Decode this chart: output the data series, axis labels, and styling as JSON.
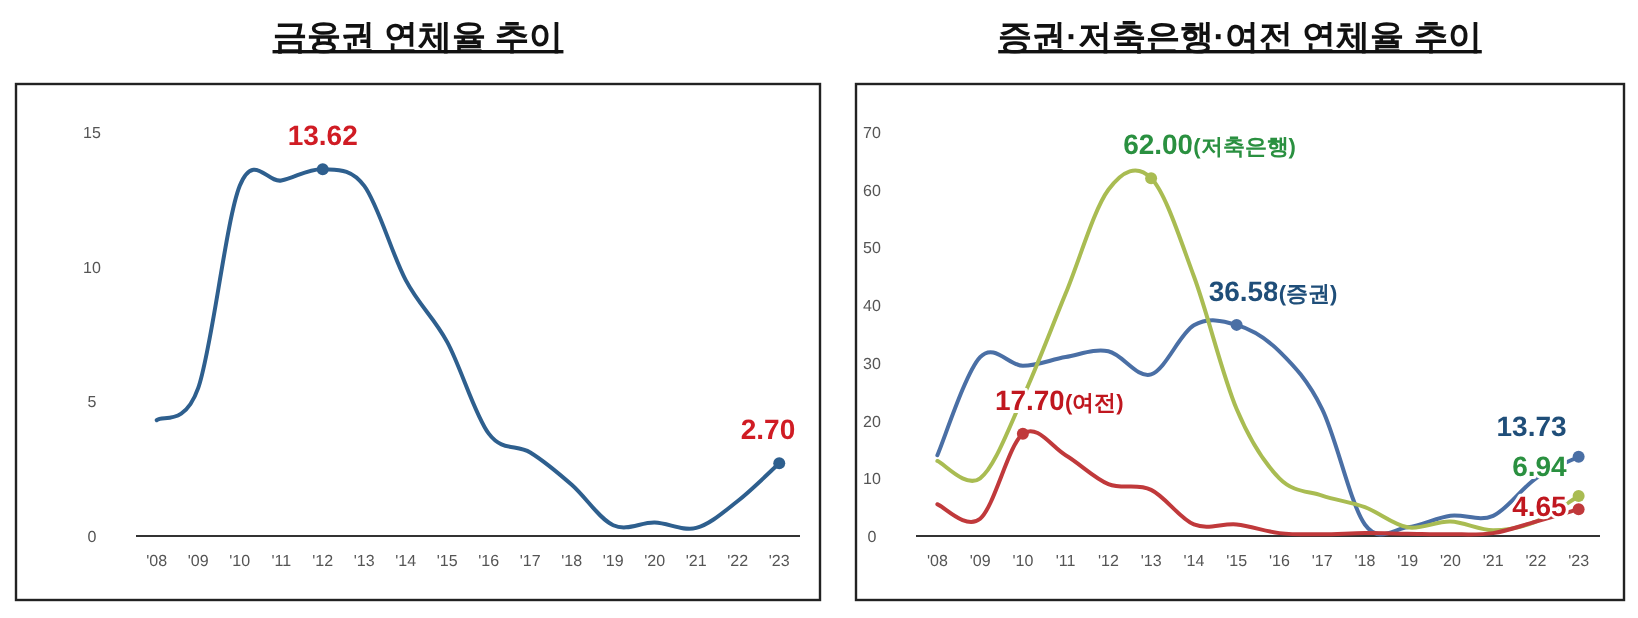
{
  "chart_data": [
    {
      "type": "line",
      "title": "금융권 연체율 추이",
      "categories": [
        "'08",
        "'09",
        "'10",
        "'11",
        "'12",
        "'13",
        "'14",
        "'15",
        "'16",
        "'17",
        "'18",
        "'19",
        "'20",
        "'21",
        "'22",
        "'23"
      ],
      "series": [
        {
          "color": "#2e5f8e",
          "values": [
            4.3,
            5.5,
            13.0,
            13.2,
            13.62,
            13.0,
            9.5,
            7.2,
            3.8,
            3.1,
            1.9,
            0.4,
            0.5,
            0.3,
            1.3,
            2.7
          ]
        }
      ],
      "ylim": [
        0,
        15
      ],
      "yticks": [
        0,
        5,
        10,
        15
      ],
      "grid": false,
      "marker": "none",
      "line_style": "solid",
      "annotations": [
        {
          "text": "13.62",
          "x": "'12",
          "y": 13.62
        },
        {
          "text": "2.70",
          "x": "'23",
          "y": 2.7
        }
      ]
    },
    {
      "type": "line",
      "title": "증권·저축은행·여전 연체율 추이",
      "categories": [
        "'08",
        "'09",
        "'10",
        "'11",
        "'12",
        "'13",
        "'14",
        "'15",
        "'16",
        "'17",
        "'18",
        "'19",
        "'20",
        "'21",
        "'22",
        "'23"
      ],
      "series": [
        {
          "color": "#4a6fa5",
          "values": [
            14,
            31,
            29.5,
            31,
            32,
            28,
            36.5,
            36.58,
            32,
            22,
            2,
            1.5,
            3.5,
            3.5,
            10,
            13.73
          ]
        },
        {
          "color": "#a9bc52",
          "values": [
            13,
            10,
            24,
            42,
            60,
            62.0,
            45,
            22,
            10,
            7,
            5,
            1.5,
            2.5,
            1,
            2.5,
            6.94
          ]
        },
        {
          "color": "#c0393b",
          "values": [
            5.5,
            3,
            17.7,
            14,
            9,
            8,
            2,
            2,
            0.5,
            0.3,
            0.5,
            0.4,
            0.3,
            0.5,
            2.5,
            4.65
          ]
        }
      ],
      "ylim": [
        0,
        70
      ],
      "yticks": [
        0,
        10,
        20,
        30,
        40,
        50,
        60,
        70
      ],
      "grid": false,
      "marker": "none",
      "line_style": "solid",
      "annotations": [
        {
          "text": "62.00(저축은행)",
          "x": "'13",
          "y": 62.0
        },
        {
          "text": "36.58(증권)",
          "x": "'15",
          "y": 36.58
        },
        {
          "text": "17.70(여전)",
          "x": "'10",
          "y": 17.7
        },
        {
          "text": "13.73",
          "x": "'23",
          "y": 13.73
        },
        {
          "text": "6.94",
          "x": "'23",
          "y": 6.94
        },
        {
          "text": "4.65",
          "x": "'23",
          "y": 4.65
        }
      ]
    }
  ]
}
